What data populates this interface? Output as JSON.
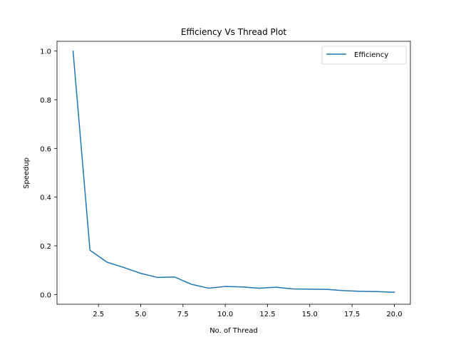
{
  "chart_data": {
    "type": "line",
    "title": "Efficiency Vs Thread Plot",
    "xlabel": "No. of Thread",
    "ylabel": "Speedup",
    "xlim": [
      0.05,
      20.95
    ],
    "ylim": [
      -0.04,
      1.04
    ],
    "xticks": [
      2.5,
      5.0,
      7.5,
      10.0,
      12.5,
      15.0,
      17.5,
      20.0
    ],
    "xtick_labels": [
      "2.5",
      "5.0",
      "7.5",
      "10.0",
      "12.5",
      "15.0",
      "17.5",
      "20.0"
    ],
    "yticks": [
      0.0,
      0.2,
      0.4,
      0.6,
      0.8,
      1.0
    ],
    "ytick_labels": [
      "0.0",
      "0.2",
      "0.4",
      "0.6",
      "0.8",
      "1.0"
    ],
    "grid": false,
    "legend_position": "top-right",
    "series": [
      {
        "name": "Efficiency",
        "color": "#1f77b4",
        "x": [
          1,
          2,
          3,
          4,
          5,
          6,
          7,
          8,
          9,
          10,
          11,
          12,
          13,
          14,
          15,
          16,
          17,
          18,
          19,
          20
        ],
        "y": [
          1.0,
          0.182,
          0.133,
          0.111,
          0.087,
          0.07,
          0.072,
          0.042,
          0.026,
          0.033,
          0.031,
          0.026,
          0.03,
          0.023,
          0.022,
          0.021,
          0.016,
          0.013,
          0.012,
          0.009
        ]
      }
    ]
  }
}
